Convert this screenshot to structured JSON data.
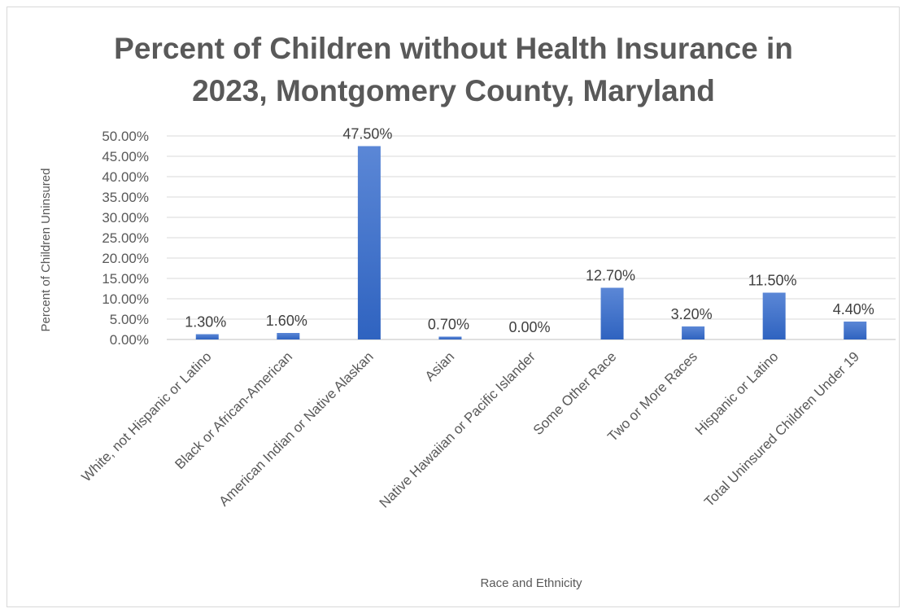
{
  "chart_data": {
    "type": "bar",
    "title_lines": [
      "Percent of Children without Health Insurance in",
      "2023, Montgomery County, Maryland"
    ],
    "xlabel": "Race and Ethnicity",
    "ylabel": "Percent of Children Uninsured",
    "categories": [
      "White, not Hispanic or Latino",
      "Black or African-American",
      "American Indian or Native Alaskan",
      "Asian",
      "Native Hawaiian or Pacific Islander",
      "Some Other Race",
      "Two or More Races",
      "Hispanic or Latino",
      "Total Uninsured Children Under 19"
    ],
    "values": [
      1.3,
      1.6,
      47.5,
      0.7,
      0.0,
      12.7,
      3.2,
      11.5,
      4.4
    ],
    "data_labels": [
      "1.30%",
      "1.60%",
      "47.50%",
      "0.70%",
      "0.00%",
      "12.70%",
      "3.20%",
      "11.50%",
      "4.40%"
    ],
    "yticks": [
      "0.00%",
      "5.00%",
      "10.00%",
      "15.00%",
      "20.00%",
      "25.00%",
      "30.00%",
      "35.00%",
      "40.00%",
      "45.00%",
      "50.00%"
    ],
    "ylim": [
      0,
      50
    ],
    "grid": true,
    "legend": "none",
    "bar_color": "#4472c4"
  }
}
